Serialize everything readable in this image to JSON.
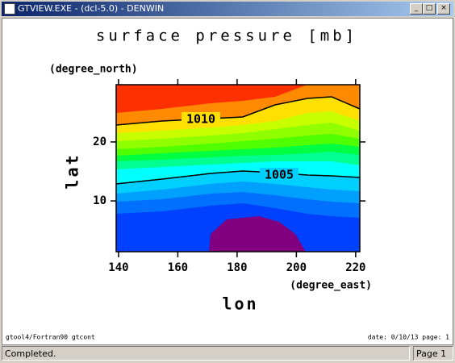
{
  "window": {
    "title": "GTVIEW.EXE - (dcl-5.0) - DENWIN"
  },
  "chart_data": {
    "type": "contour",
    "title": "surface pressure [mb]",
    "x_label": "lon",
    "x_unit": "(degree_east)",
    "y_label": "lat",
    "y_unit": "(degree_north)",
    "xlim": [
      139.2,
      221.4
    ],
    "xticks": [
      140,
      160,
      180,
      200,
      220
    ],
    "ylim": [
      1.4,
      29.7
    ],
    "yticks": [
      10,
      20
    ],
    "contour_labels": [
      1010,
      1005
    ]
  },
  "page_footer": {
    "left": "gtool4/Fortran90 gtcont",
    "right": "date: 0/10/13 page: 1"
  },
  "status_bar": {
    "message": "Completed.",
    "page": "Page 1"
  }
}
